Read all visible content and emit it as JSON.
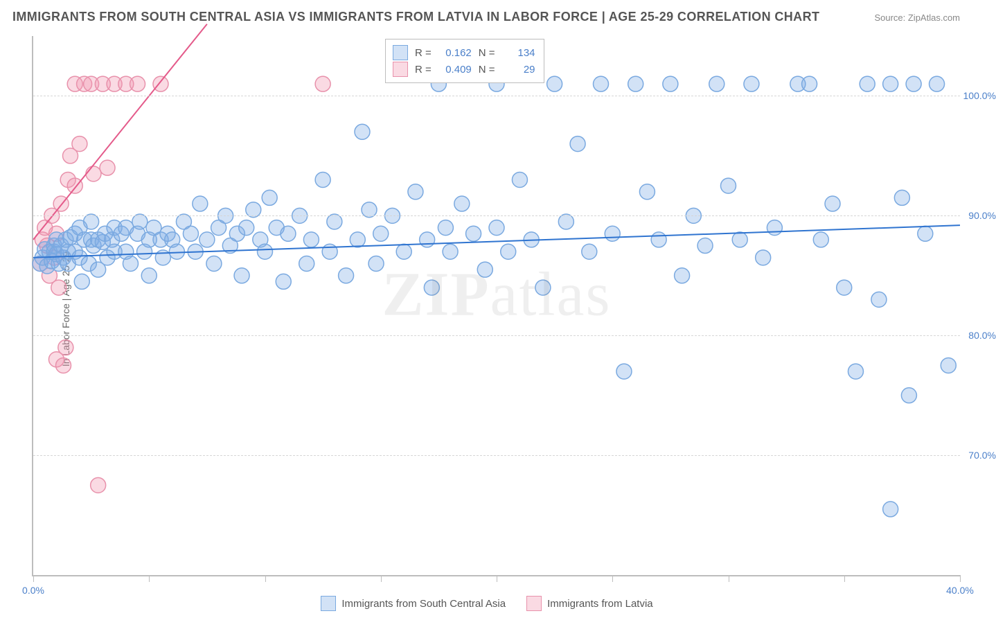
{
  "title": "IMMIGRANTS FROM SOUTH CENTRAL ASIA VS IMMIGRANTS FROM LATVIA IN LABOR FORCE | AGE 25-29 CORRELATION CHART",
  "source": "Source: ZipAtlas.com",
  "y_axis_title": "In Labor Force | Age 25-29",
  "watermark": {
    "zip": "ZIP",
    "atlas": "atlas"
  },
  "chart": {
    "type": "scatter",
    "background_color": "#ffffff",
    "grid_color": "#d6d6d6",
    "axis_color": "#bdbdbd",
    "xlim": [
      0,
      40
    ],
    "ylim": [
      60,
      105
    ],
    "x_ticks": [
      0,
      5,
      10,
      15,
      20,
      25,
      30,
      35,
      40
    ],
    "x_tick_labels": {
      "0": "0.0%",
      "40": "40.0%"
    },
    "y_gridlines": [
      70,
      80,
      90,
      100
    ],
    "y_tick_labels": {
      "70": "70.0%",
      "80": "80.0%",
      "90": "90.0%",
      "100": "100.0%"
    },
    "marker_radius": 11,
    "marker_stroke_width": 1.5,
    "line_width": 2,
    "series": [
      {
        "name": "Immigrants from South Central Asia",
        "fill_color": "rgba(125,172,230,0.35)",
        "stroke_color": "#7aa9e0",
        "line_color": "#2f74d0",
        "R": "0.162",
        "N": "134",
        "trend": {
          "x1": 0,
          "y1": 86.5,
          "x2": 40,
          "y2": 89.2
        },
        "points": [
          [
            0.3,
            86.0
          ],
          [
            0.4,
            86.5
          ],
          [
            0.5,
            87.2
          ],
          [
            0.6,
            85.8
          ],
          [
            0.7,
            87.0
          ],
          [
            0.8,
            86.2
          ],
          [
            0.9,
            87.0
          ],
          [
            0.9,
            87.5
          ],
          [
            1.0,
            86.8
          ],
          [
            1.0,
            88.0
          ],
          [
            1.1,
            86.0
          ],
          [
            1.2,
            87.5
          ],
          [
            1.3,
            86.5
          ],
          [
            1.4,
            88.0
          ],
          [
            1.5,
            87.0
          ],
          [
            1.5,
            86.0
          ],
          [
            1.6,
            88.2
          ],
          [
            1.8,
            87.0
          ],
          [
            1.8,
            88.5
          ],
          [
            2.0,
            86.5
          ],
          [
            2.0,
            89.0
          ],
          [
            2.1,
            84.5
          ],
          [
            2.2,
            88.0
          ],
          [
            2.4,
            86.0
          ],
          [
            2.5,
            88.0
          ],
          [
            2.5,
            89.5
          ],
          [
            2.6,
            87.5
          ],
          [
            2.8,
            88.0
          ],
          [
            2.8,
            85.5
          ],
          [
            3.0,
            87.8
          ],
          [
            3.1,
            88.5
          ],
          [
            3.2,
            86.5
          ],
          [
            3.4,
            88.0
          ],
          [
            3.5,
            89.0
          ],
          [
            3.5,
            87.0
          ],
          [
            3.8,
            88.5
          ],
          [
            4.0,
            87.0
          ],
          [
            4.0,
            89.0
          ],
          [
            4.2,
            86.0
          ],
          [
            4.5,
            88.5
          ],
          [
            4.6,
            89.5
          ],
          [
            4.8,
            87.0
          ],
          [
            5.0,
            88.0
          ],
          [
            5.0,
            85.0
          ],
          [
            5.2,
            89.0
          ],
          [
            5.5,
            88.0
          ],
          [
            5.6,
            86.5
          ],
          [
            5.8,
            88.5
          ],
          [
            6.0,
            88.0
          ],
          [
            6.2,
            87.0
          ],
          [
            6.5,
            89.5
          ],
          [
            6.8,
            88.5
          ],
          [
            7.0,
            87.0
          ],
          [
            7.2,
            91.0
          ],
          [
            7.5,
            88.0
          ],
          [
            7.8,
            86.0
          ],
          [
            8.0,
            89.0
          ],
          [
            8.3,
            90.0
          ],
          [
            8.5,
            87.5
          ],
          [
            8.8,
            88.5
          ],
          [
            9.0,
            85.0
          ],
          [
            9.2,
            89.0
          ],
          [
            9.5,
            90.5
          ],
          [
            9.8,
            88.0
          ],
          [
            10.0,
            87.0
          ],
          [
            10.2,
            91.5
          ],
          [
            10.5,
            89.0
          ],
          [
            10.8,
            84.5
          ],
          [
            11.0,
            88.5
          ],
          [
            11.5,
            90.0
          ],
          [
            11.8,
            86.0
          ],
          [
            12.0,
            88.0
          ],
          [
            12.5,
            93.0
          ],
          [
            12.8,
            87.0
          ],
          [
            13.0,
            89.5
          ],
          [
            13.5,
            85.0
          ],
          [
            14.0,
            88.0
          ],
          [
            14.2,
            97.0
          ],
          [
            14.5,
            90.5
          ],
          [
            14.8,
            86.0
          ],
          [
            15.0,
            88.5
          ],
          [
            15.5,
            90.0
          ],
          [
            16.0,
            87.0
          ],
          [
            16.5,
            92.0
          ],
          [
            17.0,
            88.0
          ],
          [
            17.2,
            84.0
          ],
          [
            17.5,
            101.0
          ],
          [
            17.8,
            89.0
          ],
          [
            18.0,
            87.0
          ],
          [
            18.5,
            91.0
          ],
          [
            19.0,
            88.5
          ],
          [
            19.5,
            85.5
          ],
          [
            20.0,
            101.0
          ],
          [
            20.0,
            89.0
          ],
          [
            20.5,
            87.0
          ],
          [
            21.0,
            93.0
          ],
          [
            21.5,
            88.0
          ],
          [
            22.0,
            84.0
          ],
          [
            22.5,
            101.0
          ],
          [
            23.0,
            89.5
          ],
          [
            23.5,
            96.0
          ],
          [
            24.0,
            87.0
          ],
          [
            24.5,
            101.0
          ],
          [
            25.0,
            88.5
          ],
          [
            25.5,
            77.0
          ],
          [
            26.0,
            101.0
          ],
          [
            26.5,
            92.0
          ],
          [
            27.0,
            88.0
          ],
          [
            27.5,
            101.0
          ],
          [
            28.0,
            85.0
          ],
          [
            28.5,
            90.0
          ],
          [
            29.0,
            87.5
          ],
          [
            29.5,
            101.0
          ],
          [
            30.0,
            92.5
          ],
          [
            30.5,
            88.0
          ],
          [
            31.0,
            101.0
          ],
          [
            31.5,
            86.5
          ],
          [
            32.0,
            89.0
          ],
          [
            33.0,
            101.0
          ],
          [
            33.5,
            101.0
          ],
          [
            34.0,
            88.0
          ],
          [
            34.5,
            91.0
          ],
          [
            35.0,
            84.0
          ],
          [
            35.5,
            77.0
          ],
          [
            36.0,
            101.0
          ],
          [
            36.5,
            83.0
          ],
          [
            37.0,
            65.5
          ],
          [
            37.0,
            101.0
          ],
          [
            37.5,
            91.5
          ],
          [
            37.8,
            75.0
          ],
          [
            38.0,
            101.0
          ],
          [
            38.5,
            88.5
          ],
          [
            39.0,
            101.0
          ],
          [
            39.5,
            77.5
          ]
        ]
      },
      {
        "name": "Immigrants from Latvia",
        "fill_color": "rgba(240,150,175,0.35)",
        "stroke_color": "#e891ab",
        "line_color": "#e45a8a",
        "R": "0.409",
        "N": "29",
        "trend": {
          "x1": 0,
          "y1": 88.0,
          "x2": 7.5,
          "y2": 106.0
        },
        "points": [
          [
            0.3,
            86.0
          ],
          [
            0.4,
            88.0
          ],
          [
            0.5,
            89.0
          ],
          [
            0.6,
            87.5
          ],
          [
            0.7,
            85.0
          ],
          [
            0.8,
            90.0
          ],
          [
            0.9,
            86.5
          ],
          [
            1.0,
            88.5
          ],
          [
            1.0,
            78.0
          ],
          [
            1.1,
            84.0
          ],
          [
            1.2,
            91.0
          ],
          [
            1.3,
            77.5
          ],
          [
            1.4,
            79.0
          ],
          [
            1.5,
            93.0
          ],
          [
            1.6,
            95.0
          ],
          [
            1.8,
            92.5
          ],
          [
            1.8,
            101.0
          ],
          [
            2.0,
            96.0
          ],
          [
            2.2,
            101.0
          ],
          [
            2.5,
            101.0
          ],
          [
            2.6,
            93.5
          ],
          [
            2.8,
            67.5
          ],
          [
            3.0,
            101.0
          ],
          [
            3.2,
            94.0
          ],
          [
            3.5,
            101.0
          ],
          [
            4.0,
            101.0
          ],
          [
            4.5,
            101.0
          ],
          [
            5.5,
            101.0
          ],
          [
            12.5,
            101.0
          ]
        ]
      }
    ]
  },
  "colors": {
    "text_gray": "#555555",
    "label_blue": "#4a7fc9"
  }
}
